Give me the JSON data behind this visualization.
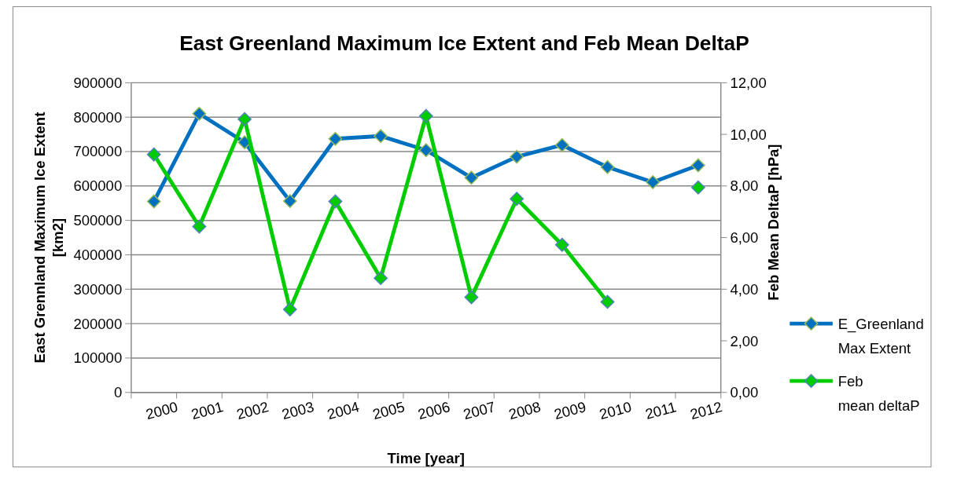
{
  "chart_data": {
    "type": "line",
    "title": "East Greenland Maximum Ice Extent and Feb Mean DeltaP",
    "xlabel": "Time [year]",
    "ylabel": "East Grennland Maximum Ice Extent [km2]",
    "y2label": "Feb Mean DeltaP [hPa]",
    "categories": [
      "2000",
      "2001",
      "2002",
      "2003",
      "2004",
      "2005",
      "2006",
      "2007",
      "2008",
      "2009",
      "2010",
      "2011",
      "2012"
    ],
    "series": [
      {
        "name": "E_Greenland Max Extent",
        "color": "#0070c0",
        "values": [
          555000,
          810000,
          727000,
          556000,
          737000,
          745000,
          704000,
          624000,
          685000,
          719000,
          655000,
          611000,
          660000
        ]
      },
      {
        "name": "Feb mean deltaP",
        "color": "#00cc00",
        "axis": "y2",
        "values": [
          9.22,
          6.43,
          10.59,
          3.22,
          7.4,
          4.43,
          10.71,
          3.69,
          7.5,
          5.72,
          3.51,
          null,
          7.94
        ]
      }
    ],
    "ylim": [
      0,
      900000
    ],
    "yticks": [
      0,
      100000,
      200000,
      300000,
      400000,
      500000,
      600000,
      700000,
      800000,
      900000
    ],
    "y2lim": [
      0,
      12
    ],
    "y2ticks": [
      {
        "value": 0,
        "label": "0,00"
      },
      {
        "value": 2,
        "label": "2,00"
      },
      {
        "value": 4,
        "label": "4,00"
      },
      {
        "value": 6,
        "label": "6,00"
      },
      {
        "value": 8,
        "label": "8,00"
      },
      {
        "value": 10,
        "label": "10,00"
      },
      {
        "value": 12,
        "label": "12,00"
      }
    ],
    "grid": "y",
    "legend": "right",
    "marker": "diamond",
    "line_style": "solid"
  }
}
